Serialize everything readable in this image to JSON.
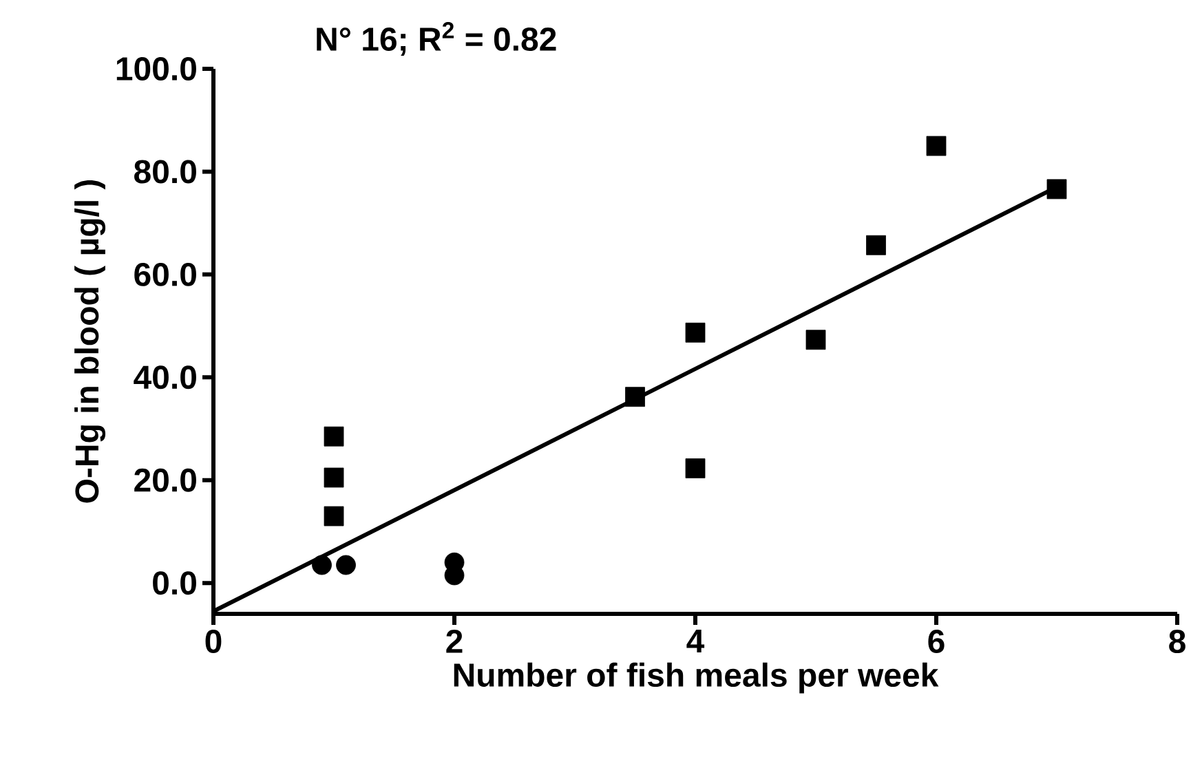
{
  "chart_data": {
    "type": "scatter",
    "title": "N° 16; R$^{2}$ = 0.82",
    "xlabel": "Number of fish meals per week",
    "ylabel": "O-Hg in blood ( µg/l )",
    "xlim": [
      0,
      8
    ],
    "ylim": [
      -6,
      100
    ],
    "xticks": [
      0,
      2,
      4,
      6,
      8
    ],
    "yticks": [
      {
        "value": 0,
        "label": "0.0"
      },
      {
        "value": 20,
        "label": "20.0"
      },
      {
        "value": 40,
        "label": "40.0"
      },
      {
        "value": 60,
        "label": "60.0"
      },
      {
        "value": 80,
        "label": "80.0"
      },
      {
        "value": 100,
        "label": "100.0"
      }
    ],
    "grid": false,
    "series": [
      {
        "marker": "square",
        "color": "#000000",
        "x": [
          1,
          1,
          1,
          3.5,
          4,
          4,
          5,
          5.5,
          6,
          7
        ],
        "values": [
          28.5,
          20.5,
          13,
          36.2,
          48.7,
          22.3,
          47.3,
          65.7,
          85,
          76.6
        ]
      },
      {
        "marker": "circle",
        "color": "#000000",
        "x": [
          0.9,
          1.1,
          2,
          2
        ],
        "values": [
          3.5,
          3.5,
          4,
          1.5
        ]
      },
      {
        "type": "line",
        "line_style": "solid",
        "color": "#000000",
        "x": [
          0,
          7
        ],
        "values": [
          -5.5,
          77
        ]
      }
    ]
  }
}
